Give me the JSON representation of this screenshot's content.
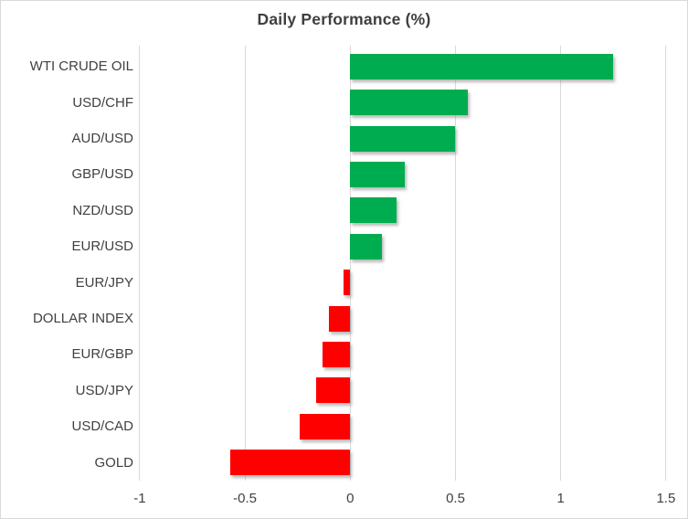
{
  "title": "Daily Performance (%)",
  "chart_data": {
    "type": "bar",
    "orientation": "horizontal",
    "title": "Daily Performance (%)",
    "categories": [
      "WTI CRUDE OIL",
      "USD/CHF",
      "AUD/USD",
      "GBP/USD",
      "NZD/USD",
      "EUR/USD",
      "EUR/JPY",
      "DOLLAR INDEX",
      "EUR/GBP",
      "USD/JPY",
      "USD/CAD",
      "GOLD"
    ],
    "values": [
      1.25,
      0.56,
      0.5,
      0.26,
      0.22,
      0.15,
      -0.03,
      -0.1,
      -0.13,
      -0.16,
      -0.24,
      -0.57
    ],
    "x_tick_labels": [
      "-1",
      "-0.5",
      "0",
      "0.5",
      "1",
      "1.5"
    ],
    "x_tick_values": [
      -1,
      -0.5,
      0,
      0.5,
      1,
      1.5
    ],
    "xlim": [
      -1,
      1.5
    ],
    "grid": true,
    "legend": "none",
    "colors": {
      "positive": "#00AC50",
      "negative": "#FF0000",
      "gridline": "#D9D9D9",
      "text": "#404040",
      "title_text": "#3F3F3F",
      "border": "#D9D9D9"
    }
  }
}
